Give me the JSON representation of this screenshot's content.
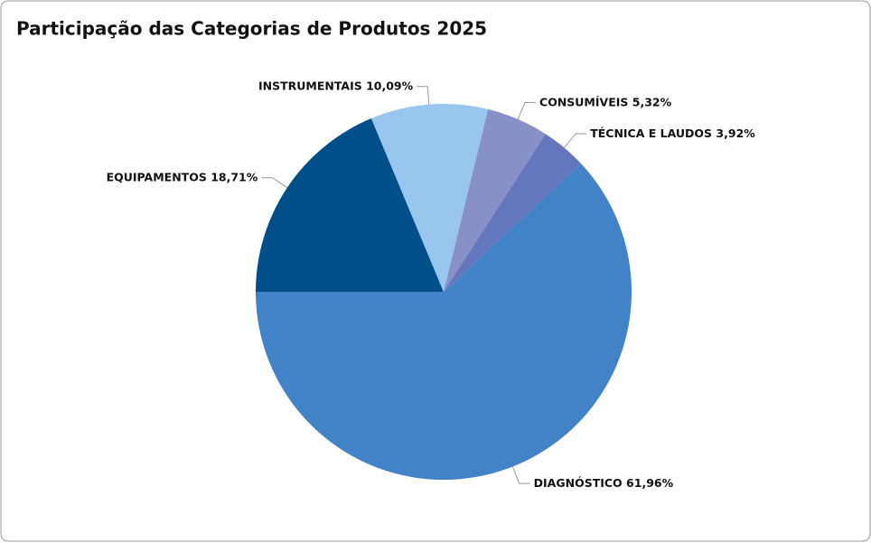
{
  "chart_data": {
    "type": "pie",
    "title": "Participação das Categorias de Produtos 2025",
    "categories": [
      "EQUIPAMENTOS",
      "INSTRUMENTAIS",
      "CONSUMÍVEIS",
      "TÉCNICA E LAUDOS",
      "DIAGNÓSTICO"
    ],
    "values": [
      18.71,
      10.09,
      5.32,
      3.92,
      61.96
    ],
    "value_labels": [
      "18,71%",
      "10,09%",
      "5,32%",
      "3,92%",
      "61,96%"
    ],
    "colors": [
      "#004f8a",
      "#98c6ee",
      "#8890c8",
      "#6476bd",
      "#4282c6"
    ]
  }
}
